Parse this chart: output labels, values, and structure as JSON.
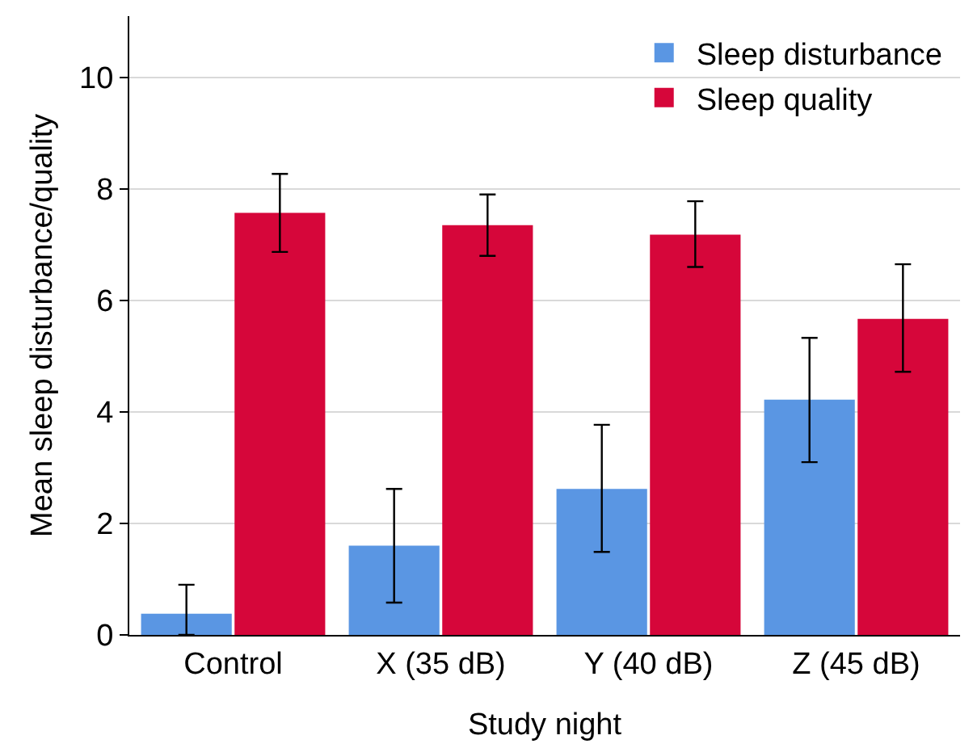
{
  "chart_data": {
    "type": "bar",
    "xlabel": "Study night",
    "ylabel": "Mean sleep disturbance/quality",
    "categories": [
      "Control",
      "X (35 dB)",
      "Y (40 dB)",
      "Z (45 dB)"
    ],
    "series": [
      {
        "name": "Sleep disturbance",
        "color": "#5a96e3",
        "values": [
          0.38,
          1.6,
          2.62,
          4.22
        ],
        "errors": [
          [
            0,
            0.9
          ],
          [
            0.58,
            2.62
          ],
          [
            1.49,
            3.77
          ],
          [
            3.1,
            5.33
          ]
        ]
      },
      {
        "name": "Sleep quality",
        "color": "#d6063a",
        "values": [
          7.57,
          7.35,
          7.18,
          5.67
        ],
        "errors": [
          [
            6.87,
            8.27
          ],
          [
            6.8,
            7.9
          ],
          [
            6.6,
            7.78
          ],
          [
            4.72,
            6.65
          ]
        ]
      }
    ],
    "ylim": [
      0,
      11.1
    ],
    "yticks": [
      0,
      2,
      4,
      6,
      8,
      10
    ],
    "grid": "y",
    "legend": "top right"
  }
}
